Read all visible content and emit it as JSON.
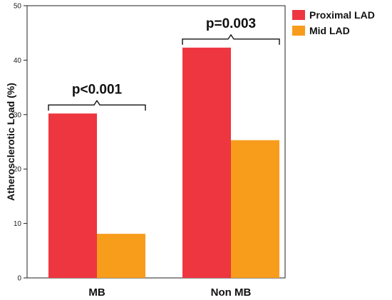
{
  "chart_data": {
    "type": "bar",
    "categories": [
      "MB",
      "Non MB"
    ],
    "series": [
      {
        "name": "Proximal LAD",
        "values": [
          30.2,
          42.3
        ],
        "color": "#ee3640"
      },
      {
        "name": "Mid LAD",
        "values": [
          8.1,
          25.3
        ],
        "color": "#f89c1c"
      }
    ],
    "ylabel": "Atherosclerotic Load (%)",
    "xlabel": "",
    "ylim": [
      0,
      50
    ],
    "yticks": [
      0,
      10,
      20,
      30,
      40,
      50
    ],
    "grid": false,
    "legend_position": "top-right",
    "annotations": [
      {
        "category": "MB",
        "text": "p<0.001"
      },
      {
        "category": "Non MB",
        "text": "p=0.003"
      }
    ]
  }
}
